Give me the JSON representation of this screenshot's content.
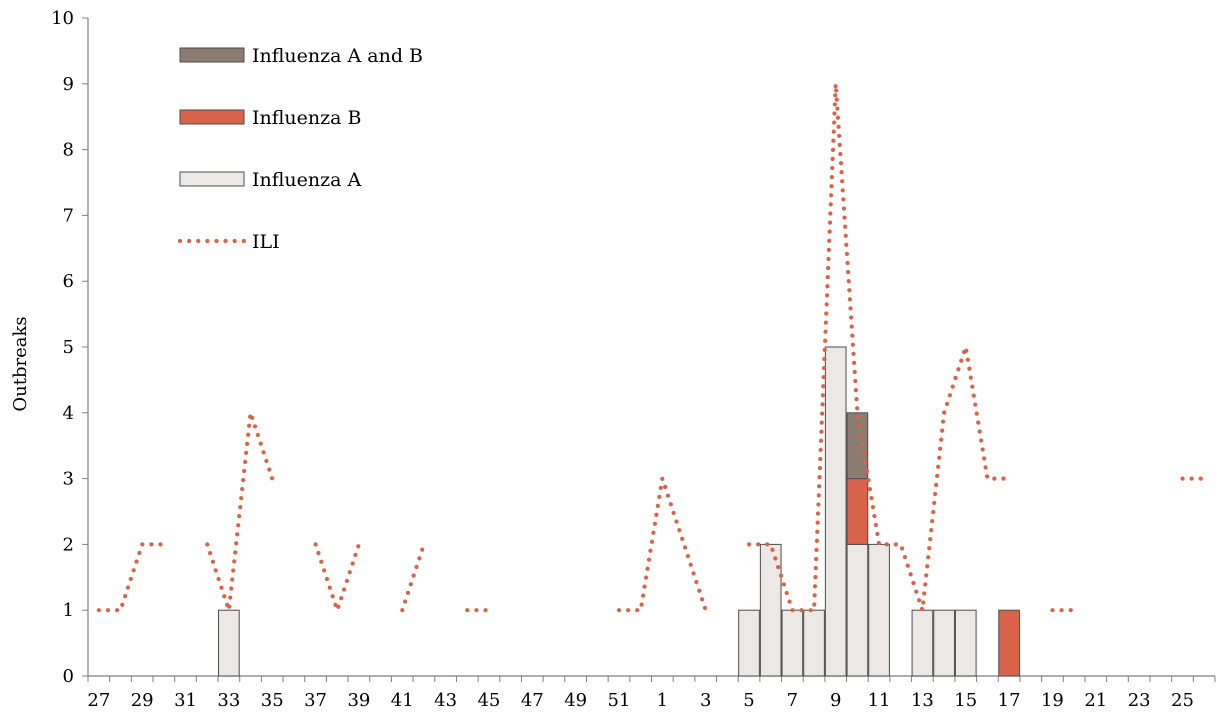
{
  "chart_data": {
    "type": "bar",
    "ylabel": "Outbreaks",
    "ylim": [
      0,
      10
    ],
    "y_ticks": [
      "0",
      "1",
      "2",
      "3",
      "4",
      "5",
      "6",
      "7",
      "8",
      "9",
      "10"
    ],
    "categories": [
      "27",
      "28",
      "29",
      "30",
      "31",
      "32",
      "33",
      "34",
      "35",
      "36",
      "37",
      "38",
      "39",
      "40",
      "41",
      "42",
      "43",
      "44",
      "45",
      "46",
      "47",
      "48",
      "49",
      "50",
      "51",
      "52",
      "1",
      "2",
      "3",
      "4",
      "5",
      "6",
      "7",
      "8",
      "9",
      "10",
      "11",
      "12",
      "13",
      "14",
      "15",
      "16",
      "17",
      "18",
      "19",
      "20",
      "21",
      "22",
      "23",
      "24",
      "25",
      "26"
    ],
    "x_tick_labels": [
      "27",
      "29",
      "31",
      "33",
      "35",
      "37",
      "39",
      "41",
      "43",
      "45",
      "47",
      "49",
      "51",
      "1",
      "3",
      "5",
      "7",
      "9",
      "11",
      "13",
      "15",
      "17",
      "19",
      "21",
      "23",
      "25"
    ],
    "legend_position": "top-left",
    "series": [
      {
        "name": "Influenza A",
        "kind": "bar",
        "color": "#ebe8e5",
        "values": [
          0,
          0,
          0,
          0,
          0,
          0,
          1,
          0,
          0,
          0,
          0,
          0,
          0,
          0,
          0,
          0,
          0,
          0,
          0,
          0,
          0,
          0,
          0,
          0,
          0,
          0,
          0,
          0,
          0,
          0,
          1,
          2,
          1,
          1,
          5,
          2,
          2,
          0,
          1,
          1,
          1,
          0,
          0,
          0,
          0,
          0,
          0,
          0,
          0,
          0,
          0,
          0
        ]
      },
      {
        "name": "Influenza B",
        "kind": "bar",
        "color": "#d9634a",
        "values": [
          0,
          0,
          0,
          0,
          0,
          0,
          0,
          0,
          0,
          0,
          0,
          0,
          0,
          0,
          0,
          0,
          0,
          0,
          0,
          0,
          0,
          0,
          0,
          0,
          0,
          0,
          0,
          0,
          0,
          0,
          0,
          0,
          0,
          0,
          0,
          1,
          0,
          0,
          0,
          0,
          0,
          0,
          1,
          0,
          0,
          0,
          0,
          0,
          0,
          0,
          0,
          0
        ]
      },
      {
        "name": "Influenza A and B",
        "kind": "bar",
        "color": "#8c7b70",
        "values": [
          0,
          0,
          0,
          0,
          0,
          0,
          0,
          0,
          0,
          0,
          0,
          0,
          0,
          0,
          0,
          0,
          0,
          0,
          0,
          0,
          0,
          0,
          0,
          0,
          0,
          0,
          0,
          0,
          0,
          0,
          0,
          0,
          0,
          0,
          0,
          1,
          0,
          0,
          0,
          0,
          0,
          0,
          0,
          0,
          0,
          0,
          0,
          0,
          0,
          0,
          0,
          0
        ]
      },
      {
        "name": "ILI",
        "kind": "line",
        "style": "dotted",
        "color": "#d9634a",
        "values": [
          1,
          1,
          2,
          2,
          null,
          2,
          1,
          4,
          3,
          null,
          2,
          1,
          2,
          null,
          1,
          2,
          null,
          1,
          1,
          null,
          null,
          null,
          null,
          null,
          1,
          1,
          3,
          2,
          1,
          null,
          2,
          2,
          1,
          1,
          9,
          4,
          2,
          2,
          1,
          4,
          5,
          3,
          3,
          null,
          1,
          1,
          null,
          null,
          null,
          null,
          3,
          3
        ]
      }
    ]
  }
}
